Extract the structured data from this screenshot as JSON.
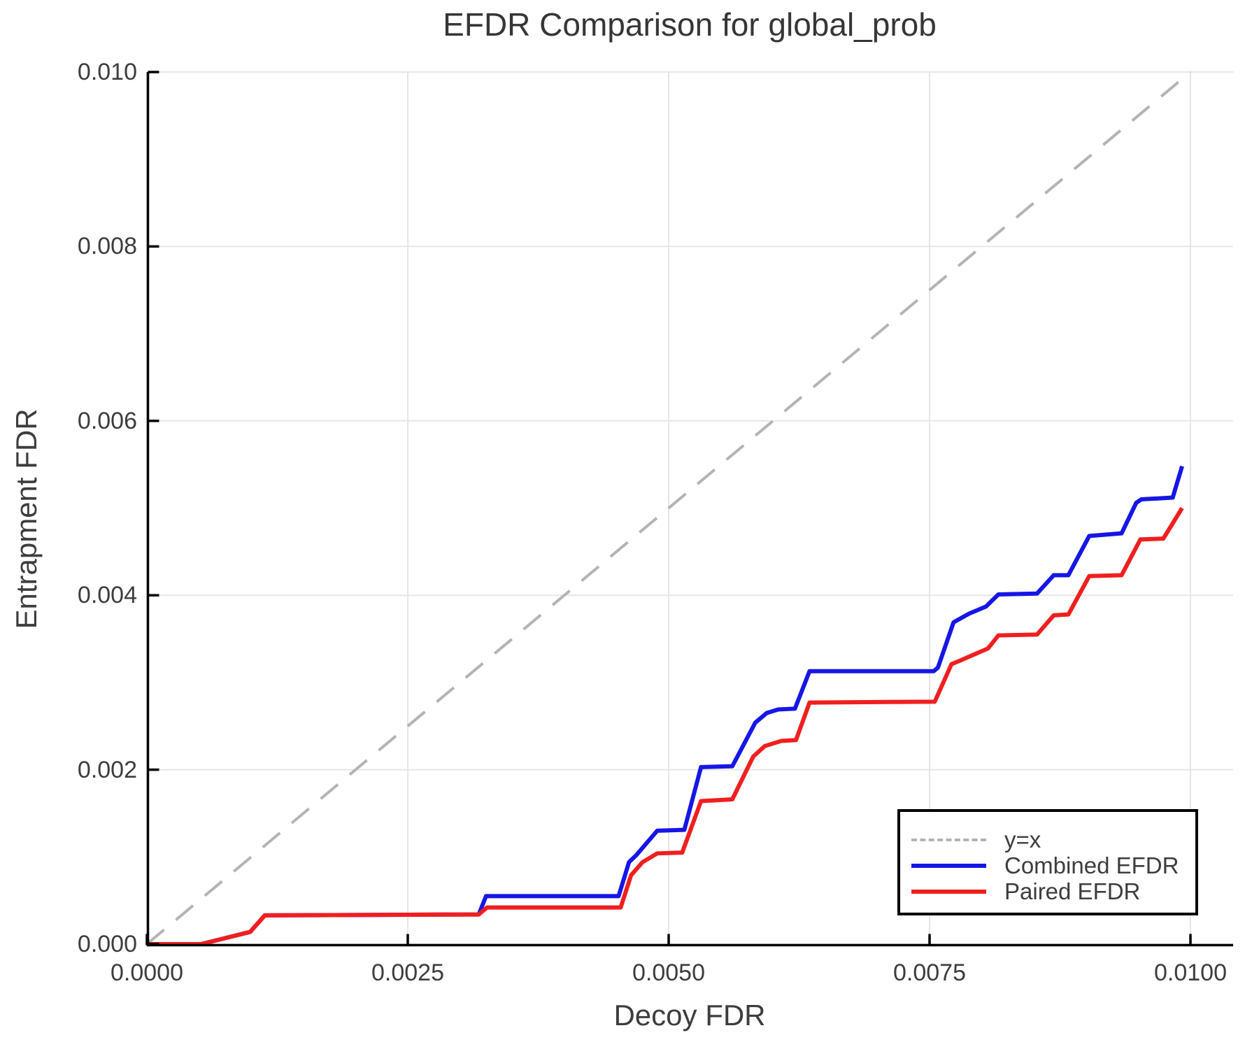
{
  "title": "EFDR Comparison for global_prob",
  "axes": {
    "xlabel": "Decoy FDR",
    "ylabel": "Entrapment FDR",
    "x_tick_labels": [
      "0.0000",
      "0.0025",
      "0.0050",
      "0.0075",
      "0.0100"
    ],
    "x_tick_values": [
      0,
      0.0025,
      0.005,
      0.0075,
      0.01
    ],
    "y_tick_labels": [
      "0.000",
      "0.002",
      "0.004",
      "0.006",
      "0.008",
      "0.010"
    ],
    "y_tick_values": [
      0,
      0.002,
      0.004,
      0.006,
      0.008,
      0.01
    ]
  },
  "colors": {
    "combined": "#1616e6",
    "paired": "#f01f1f",
    "identity": "#b4b4b4",
    "grid": "#e6e6e6",
    "spine": "#000000",
    "text": "#3d3d3d"
  },
  "legend": {
    "items": [
      {
        "label": "y=x",
        "color": "#b4b4b4",
        "style": "dashed"
      },
      {
        "label": "Combined EFDR",
        "color": "#1616e6",
        "style": "solid"
      },
      {
        "label": "Paired EFDR",
        "color": "#f01f1f",
        "style": "solid"
      }
    ]
  },
  "chart_data": {
    "type": "line",
    "title": "EFDR Comparison for global_prob",
    "xlabel": "Decoy FDR",
    "ylabel": "Entrapment FDR",
    "xlim": [
      0,
      0.01
    ],
    "ylim": [
      0,
      0.01
    ],
    "grid": true,
    "legend_position": "lower right",
    "series": [
      {
        "name": "y=x",
        "style": "dashed",
        "color": "#b4b4b4",
        "x": [
          0,
          0.01
        ],
        "y": [
          0,
          0.01
        ]
      },
      {
        "name": "Combined EFDR",
        "style": "solid",
        "color": "#1616e6",
        "x": [
          0,
          0.00052,
          0.00099,
          0.00113,
          0.00318,
          0.00325,
          0.00452,
          0.00462,
          0.00469,
          0.00489,
          0.00515,
          0.00531,
          0.00561,
          0.00583,
          0.00594,
          0.00605,
          0.00621,
          0.00635,
          0.00754,
          0.00758,
          0.00773,
          0.00788,
          0.00804,
          0.00816,
          0.00853,
          0.00869,
          0.00883,
          0.00903,
          0.00934,
          0.00948,
          0.00953,
          0.00983,
          0.00992
        ],
        "y": [
          0,
          0,
          0.00014,
          0.00033,
          0.00034,
          0.00055,
          0.00055,
          0.00094,
          0.00102,
          0.0013,
          0.00131,
          0.00203,
          0.00204,
          0.00254,
          0.00265,
          0.00269,
          0.0027,
          0.00313,
          0.00313,
          0.00317,
          0.00369,
          0.00379,
          0.00387,
          0.00401,
          0.00402,
          0.00423,
          0.00423,
          0.00468,
          0.00471,
          0.00506,
          0.0051,
          0.00512,
          0.00548
        ]
      },
      {
        "name": "Paired EFDR",
        "style": "solid",
        "color": "#f01f1f",
        "x": [
          0,
          0.00052,
          0.00099,
          0.00113,
          0.00318,
          0.00326,
          0.00454,
          0.00464,
          0.00475,
          0.00489,
          0.00513,
          0.00531,
          0.00561,
          0.00581,
          0.00592,
          0.00608,
          0.00622,
          0.00635,
          0.00755,
          0.00771,
          0.00779,
          0.00806,
          0.00816,
          0.00853,
          0.00869,
          0.00883,
          0.00903,
          0.00934,
          0.00952,
          0.00974,
          0.00992
        ],
        "y": [
          0,
          0,
          0.00014,
          0.00033,
          0.00034,
          0.00042,
          0.00042,
          0.00079,
          0.00094,
          0.00104,
          0.00105,
          0.00164,
          0.00166,
          0.00215,
          0.00227,
          0.00233,
          0.00234,
          0.00277,
          0.00278,
          0.00321,
          0.00325,
          0.00339,
          0.00354,
          0.00355,
          0.00377,
          0.00378,
          0.00422,
          0.00423,
          0.00464,
          0.00465,
          0.005
        ]
      }
    ]
  }
}
